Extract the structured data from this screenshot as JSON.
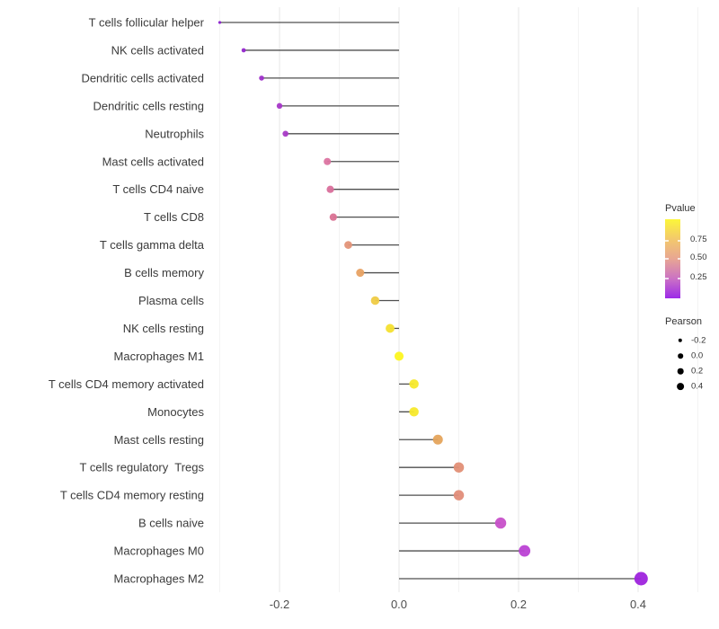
{
  "figure": {
    "background": "#ffffff"
  },
  "chart_data": {
    "type": "lollipop",
    "orientation": "horizontal",
    "title": "",
    "xlabel": "",
    "ylabel": "",
    "xlim": [
      -0.31,
      0.52
    ],
    "x_ticks": [
      -0.2,
      0.0,
      0.2,
      0.4
    ],
    "x_tick_labels": [
      "-0.2",
      "0.0",
      "0.2",
      "0.4"
    ],
    "x_minor_gridlines": [
      -0.3,
      -0.1,
      0.1,
      0.3,
      0.5
    ],
    "baseline": 0.0,
    "grid": "vertical-only",
    "stem_color": "#4f4f4f",
    "rows": [
      {
        "label": "T cells follicular helper",
        "pearson": -0.3,
        "color": "#8b21cf"
      },
      {
        "label": "NK cells activated",
        "pearson": -0.26,
        "color": "#9527cd"
      },
      {
        "label": "Dendritic cells activated",
        "pearson": -0.23,
        "color": "#9e2fca"
      },
      {
        "label": "Dendritic cells resting",
        "pearson": -0.2,
        "color": "#a637c8"
      },
      {
        "label": "Neutrophils",
        "pearson": -0.19,
        "color": "#a83ac6"
      },
      {
        "label": "Mast cells activated",
        "pearson": -0.12,
        "color": "#dc74a1"
      },
      {
        "label": "T cells CD4 naive",
        "pearson": -0.115,
        "color": "#d96f9b"
      },
      {
        "label": "T cells CD8",
        "pearson": -0.11,
        "color": "#da7294"
      },
      {
        "label": "T cells gamma delta",
        "pearson": -0.085,
        "color": "#e39378"
      },
      {
        "label": "B cells memory",
        "pearson": -0.065,
        "color": "#e8a263"
      },
      {
        "label": "Plasma cells",
        "pearson": -0.04,
        "color": "#efcb45"
      },
      {
        "label": "NK cells resting",
        "pearson": -0.015,
        "color": "#f4e030"
      },
      {
        "label": "Macrophages M1",
        "pearson": 0.0,
        "color": "#fdf620"
      },
      {
        "label": "T cells CD4 memory activated",
        "pearson": 0.025,
        "color": "#f7e92b"
      },
      {
        "label": "Monocytes",
        "pearson": 0.025,
        "color": "#f7e92b"
      },
      {
        "label": "Mast cells resting",
        "pearson": 0.065,
        "color": "#e5a45c"
      },
      {
        "label": "T cells regulatory  Tregs",
        "pearson": 0.1,
        "color": "#e18f76"
      },
      {
        "label": "T cells CD4 memory resting",
        "pearson": 0.1,
        "color": "#e18d79"
      },
      {
        "label": "B cells naive",
        "pearson": 0.17,
        "color": "#c750c9"
      },
      {
        "label": "Macrophages M0",
        "pearson": 0.21,
        "color": "#bb42d4"
      },
      {
        "label": "Macrophages M2",
        "pearson": 0.405,
        "color": "#9e23dd"
      }
    ]
  },
  "legends": {
    "pvalue": {
      "title": "Pvalue",
      "tick_labels": [
        "0.75",
        "0.50",
        "0.25"
      ],
      "tick_values": [
        0.75,
        0.5,
        0.25
      ],
      "range": [
        0,
        1
      ],
      "gradient_stops_top_to_bottom": [
        "#fcf63a",
        "#f3c96c",
        "#e8a693",
        "#cb72c4",
        "#9d2ae8"
      ]
    },
    "pearson": {
      "title": "Pearson",
      "dot_color": "#000000",
      "entries": [
        {
          "label": "-0.2",
          "radius": 2.2
        },
        {
          "label": "0.0",
          "radius": 2.8
        },
        {
          "label": "0.2",
          "radius": 3.3
        },
        {
          "label": "0.4",
          "radius": 3.9
        }
      ]
    }
  },
  "style": {
    "major_gridline_color": "#e7e7e7",
    "minor_gridline_color": "#f2f2f2",
    "axis_text_color": "#4d4d4d",
    "label_text_color": "#3b3b3b"
  }
}
